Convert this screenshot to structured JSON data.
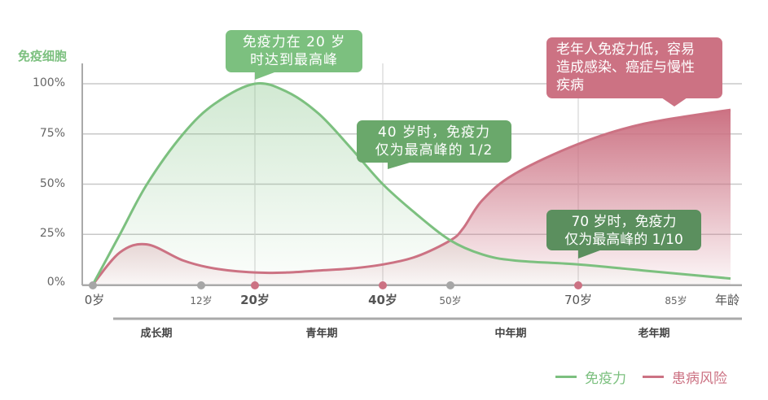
{
  "chart_data": {
    "type": "area",
    "title": "",
    "ylabel": "免疫细胞",
    "xlabel": "年龄",
    "ylim": [
      0,
      100
    ],
    "yticks": [
      "100%",
      "75%",
      "50%",
      "25%",
      "0%"
    ],
    "xticks": [
      {
        "label": "0岁",
        "age": 0,
        "dot": "gray",
        "style": "origin"
      },
      {
        "label": "12岁",
        "age": 12,
        "dot": "gray",
        "style": "minor"
      },
      {
        "label": "20岁",
        "age": 20,
        "dot": "pink",
        "style": "major"
      },
      {
        "label": "40岁",
        "age": 40,
        "dot": "pink",
        "style": "major"
      },
      {
        "label": "50岁",
        "age": 50,
        "dot": "gray",
        "style": "minor"
      },
      {
        "label": "70岁",
        "age": 70,
        "dot": "pink",
        "style": "major"
      },
      {
        "label": "85岁",
        "age": 85,
        "dot": "none",
        "style": "minor"
      }
    ],
    "periods": [
      "成长期",
      "青年期",
      "中年期",
      "老年期"
    ],
    "series": [
      {
        "name": "免疫力",
        "color": "#7cc07f",
        "x": [
          0,
          3,
          6,
          10,
          14,
          20,
          25,
          30,
          35,
          40,
          45,
          50,
          55,
          60,
          70,
          80,
          90
        ],
        "values": [
          0,
          25,
          50,
          75,
          90,
          100,
          96,
          85,
          68,
          50,
          35,
          22,
          15,
          12,
          10,
          7,
          3
        ]
      },
      {
        "name": "患病风险",
        "color": "#cc7283",
        "x": [
          0,
          3,
          6,
          10,
          14,
          20,
          25,
          30,
          35,
          40,
          45,
          50,
          52,
          55,
          60,
          70,
          80,
          90
        ],
        "values": [
          0,
          16,
          20,
          12,
          8,
          6,
          6,
          7,
          8,
          10,
          14,
          22,
          28,
          42,
          55,
          70,
          80,
          87
        ]
      }
    ],
    "annotations": [
      "免疫力在 20 岁时达到最高峰",
      "40 岁时，免疫力仅为最高峰的 1/2",
      "老年人免疫力低，容易造成感染、癌症与慢性疾病",
      "70 岁时，免疫力仅为最高峰的 1/10"
    ],
    "legend_position": "bottom-right",
    "grid": true
  },
  "axis": {
    "y_title": "免疫细胞",
    "y_ticks": [
      "100%",
      "75%",
      "50%",
      "25%",
      "0%"
    ],
    "x_ticks": [
      "0岁",
      "12岁",
      "20岁",
      "40岁",
      "50岁",
      "70岁",
      "85岁"
    ],
    "x_name": "年龄"
  },
  "periods": [
    "成长期",
    "青年期",
    "中年期",
    "老年期"
  ],
  "bubbles": {
    "peak": {
      "line1": "免疫力在 20 岁",
      "line2": "时达到最高峰"
    },
    "forty": {
      "line1": "40 岁时，免疫力",
      "line2": "仅为最高峰的 1/2"
    },
    "elderly": {
      "line1": "老年人免疫力低，容易",
      "line2": "造成感染、癌症与慢性",
      "line3": "疾病"
    },
    "seventy": {
      "line1": "70 岁时，免疫力",
      "line2": "仅为最高峰的 1/10"
    }
  },
  "legend": {
    "immunity": {
      "label": "免疫力",
      "color": "#7cc07f"
    },
    "risk": {
      "label": "患病风险",
      "color": "#cc7283"
    }
  },
  "colors": {
    "green": "#7cc07f",
    "green_dark": "#6aa86b",
    "green_darker": "#5b8f5e",
    "pink": "#cc7283",
    "grid": "#c8c8c8",
    "axis": "#aaaaaa",
    "dot_gray": "#a6a6a6"
  }
}
